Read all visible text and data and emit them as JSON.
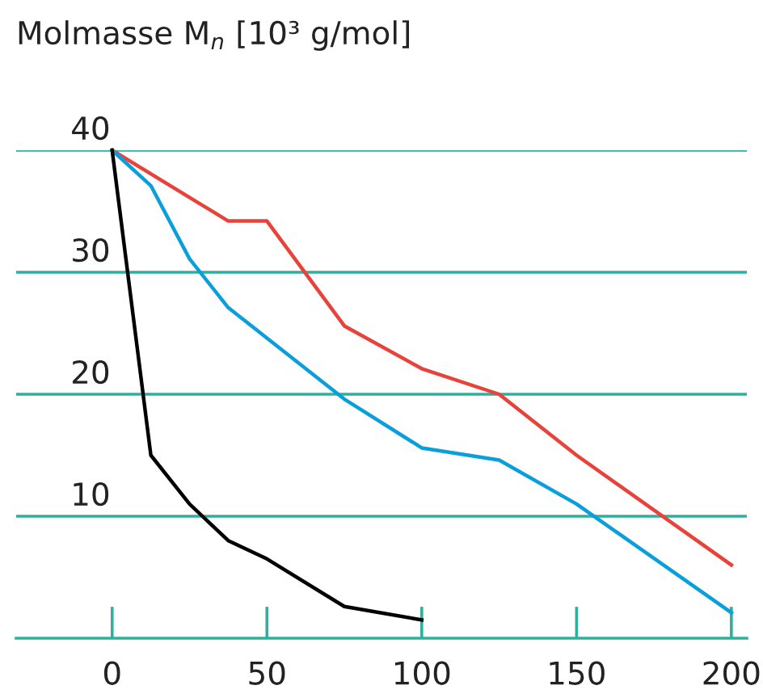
{
  "chart_data": {
    "type": "line",
    "ylabel": "Molmasse M$_{n}$ [10³ g/mol]",
    "xlim": [
      -31,
      205
    ],
    "ylim": [
      0,
      40
    ],
    "xticks": [
      0,
      50,
      100,
      150,
      200
    ],
    "yticks": [
      10,
      20,
      30,
      40
    ],
    "grid": "y",
    "marker": "none",
    "line_style": "solid",
    "legend": false,
    "series": [
      {
        "color": "#e8423a",
        "x": [
          0,
          37.5,
          50,
          75,
          100,
          125,
          150,
          200
        ],
        "values": [
          40,
          34.2,
          34.2,
          25.6,
          22.1,
          20.0,
          15.0,
          6.0
        ]
      },
      {
        "color": "#0a9fdc",
        "x": [
          0,
          12.5,
          25,
          37.5,
          75,
          100,
          125,
          150,
          200
        ],
        "values": [
          40,
          37.1,
          31.1,
          27.1,
          19.6,
          15.6,
          14.6,
          11.0,
          2.1
        ]
      },
      {
        "color": "#000000",
        "x": [
          0,
          12.5,
          25,
          37.5,
          50,
          75,
          100
        ],
        "values": [
          40,
          15.0,
          11.0,
          8.0,
          6.5,
          2.6,
          1.5
        ]
      }
    ]
  }
}
